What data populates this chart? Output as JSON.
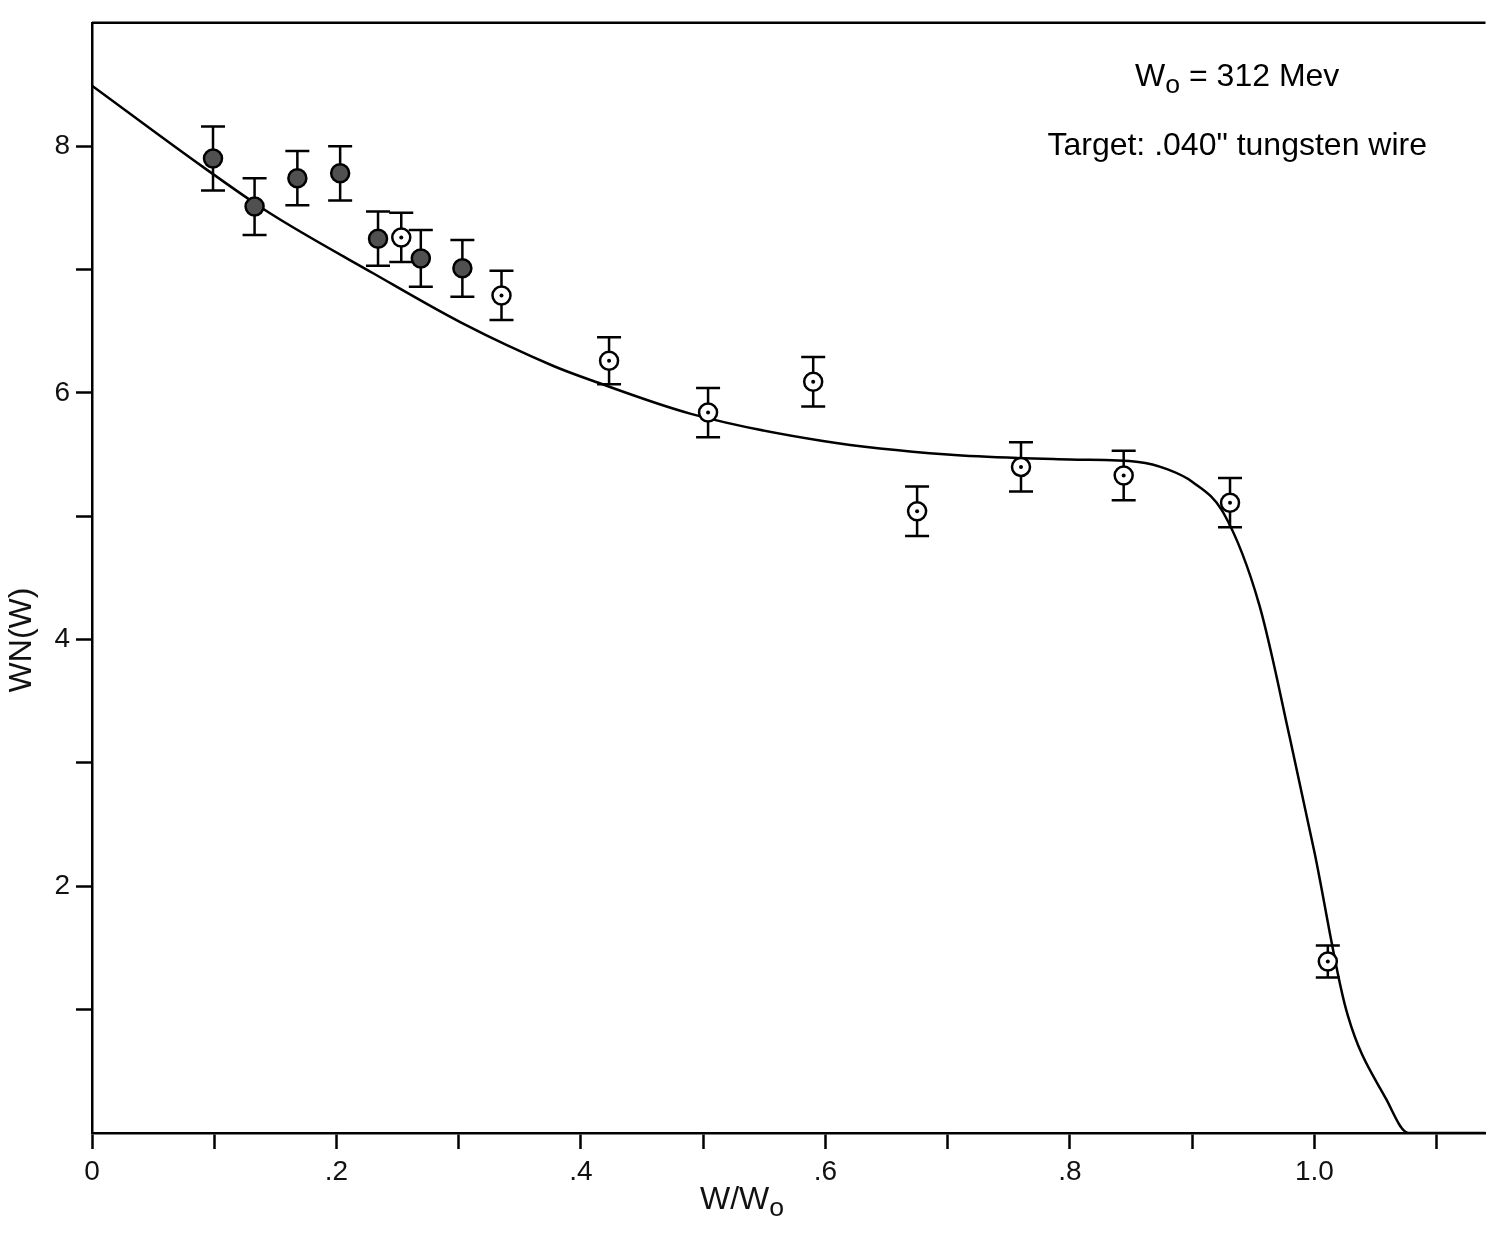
{
  "chart_data": {
    "type": "scatter",
    "xlabel": "W/W$_{o}$",
    "ylabel": "WN(W)",
    "annotations": [
      "W$_{o}$ = 312 Mev",
      "Target: .040\" tungsten wire"
    ],
    "xlim": [
      0,
      1.14
    ],
    "ylim": [
      0,
      9
    ],
    "xticks": [
      {
        "value": 0,
        "label": "0"
      },
      {
        "value": 0.1,
        "label": null
      },
      {
        "value": 0.2,
        "label": ".2"
      },
      {
        "value": 0.3,
        "label": null
      },
      {
        "value": 0.4,
        "label": ".4"
      },
      {
        "value": 0.5,
        "label": null
      },
      {
        "value": 0.6,
        "label": ".6"
      },
      {
        "value": 0.7,
        "label": null
      },
      {
        "value": 0.8,
        "label": ".8"
      },
      {
        "value": 0.9,
        "label": null
      },
      {
        "value": 1.0,
        "label": "1.0"
      },
      {
        "value": 1.1,
        "label": null
      }
    ],
    "yticks": [
      {
        "value": 1,
        "label": null
      },
      2,
      {
        "value": 3,
        "label": null
      },
      4,
      {
        "value": 5,
        "label": null
      },
      6,
      {
        "value": 7,
        "label": null
      },
      8
    ],
    "grid": false,
    "legend": false,
    "marker": "circle",
    "series": [
      {
        "type": "scatter",
        "color": "#505050",
        "x": [
          0.099,
          0.133,
          0.168,
          0.203,
          0.234,
          0.269,
          0.303
        ],
        "values": [
          7.9,
          7.51,
          7.74,
          7.78,
          7.25,
          7.09,
          7.01
        ],
        "errors": [
          0.26,
          0.23,
          0.22,
          0.22,
          0.22,
          0.23,
          0.23
        ]
      },
      {
        "type": "scatter",
        "color": "#000000",
        "x": [
          0.253,
          0.335,
          0.423,
          0.504,
          0.59,
          0.675,
          0.76,
          0.844,
          0.931,
          1.011
        ],
        "values": [
          7.26,
          6.79,
          6.26,
          5.84,
          6.09,
          5.04,
          5.4,
          5.33,
          5.11,
          1.39
        ],
        "errors": [
          0.2,
          0.2,
          0.19,
          0.2,
          0.2,
          0.2,
          0.2,
          0.2,
          0.2,
          0.13
        ]
      },
      {
        "type": "line",
        "color": "#000000",
        "marker": "none",
        "line_style": "solid",
        "x": [
          0,
          0.091,
          0.145,
          0.23,
          0.302,
          0.377,
          0.409,
          0.49,
          0.598,
          0.7,
          0.8,
          0.856,
          0.88,
          0.9,
          0.926,
          0.955,
          0.98,
          1.0,
          1.026,
          1.059,
          1.077,
          1.14
        ],
        "values": [
          8.49,
          7.83,
          7.46,
          6.97,
          6.57,
          6.22,
          6.1,
          5.83,
          5.61,
          5.5,
          5.46,
          5.44,
          5.38,
          5.28,
          5.02,
          4.28,
          3.2,
          2.28,
          1.0,
          0.27,
          0,
          0
        ]
      }
    ]
  }
}
